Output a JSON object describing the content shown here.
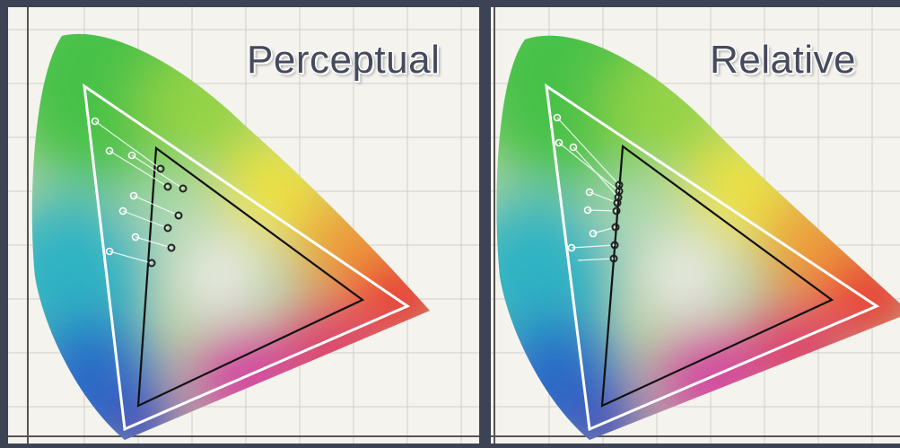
{
  "panels": [
    {
      "title": "Perceptual"
    },
    {
      "title": "Relative"
    }
  ],
  "colors": {
    "background": "#3d4354",
    "chart_paper": "#f4f3ee",
    "grid_line": "#c9c9c9",
    "gamut_outline_outer": "#ffffff",
    "gamut_outline_inner": "#111111",
    "mapping_points": "#222222"
  }
}
